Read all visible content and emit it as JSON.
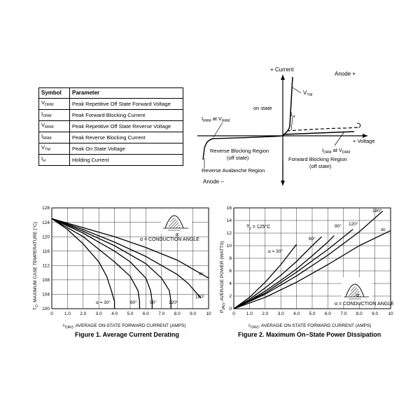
{
  "table": {
    "headers": [
      "Symbol",
      "Parameter"
    ],
    "rows": [
      {
        "sym": "V",
        "sub": "DRM",
        "param": "Peak Repetitive Off State Forward Voltage"
      },
      {
        "sym": "I",
        "sub": "DRM",
        "param": "Peak Forward Blocking Current"
      },
      {
        "sym": "V",
        "sub": "RRM",
        "param": "Peak Repetitive Off State Reverse Voltage"
      },
      {
        "sym": "I",
        "sub": "RRM",
        "param": "Peak Reverse Blocking Current"
      },
      {
        "sym": "V",
        "sub": "TM",
        "param": "Peak On State Voltage"
      },
      {
        "sym": "I",
        "sub": "H",
        "param": "Holding Current"
      }
    ]
  },
  "vi_diagram": {
    "plus_current": "+ Current",
    "anode_plus": "Anode +",
    "vtm_main": "V",
    "vtm_sub": "TM",
    "on_state": "on state",
    "ih_main": "I",
    "ih_sub": "H",
    "irrm_main": "I",
    "irrm_sub": "RRM",
    "irrm_at": " at V",
    "irrm_at_sub": "RRM",
    "plus_voltage": "+ Voltage",
    "idrm_main": "I",
    "idrm_sub": "DRM",
    "idrm_at": " at V",
    "idrm_at_sub": "DRM",
    "rev_block_1": "Reverse Blocking Region",
    "rev_block_2": "(off state)",
    "fwd_block_1": "Forward Blocking Region",
    "fwd_block_2": "(off state)",
    "rev_aval": "Reverse Avalanche Region",
    "anode_minus": "Anode –"
  },
  "figure1": {
    "caption": "Figure 1. Average Current Derating",
    "ylabel_main": "T",
    "ylabel_sub": "C",
    "ylabel_rest": ", MAXIMUM CASE TEMPERATURE (°C)",
    "xlabel_main": "I",
    "xlabel_sub": "T(AV)",
    "xlabel_rest": ", AVERAGE ON-STATE FORWARD CURRENT (AMPS)",
    "conduction_label": "α = CONDUCTION ANGLE",
    "alpha_label": "α",
    "curve_labels": [
      "α = 30°",
      "60°",
      "90°",
      "120°",
      "180°",
      "dc"
    ],
    "chart_data": {
      "type": "line",
      "xlim": [
        0,
        10
      ],
      "ylim": [
        100,
        128
      ],
      "xticks": [
        "0",
        "1.0",
        "2.0",
        "3.0",
        "4.0",
        "5.0",
        "6.0",
        "7.0",
        "8.0",
        "9.0",
        "10"
      ],
      "yticks": [
        "100",
        "104",
        "108",
        "112",
        "116",
        "120",
        "124",
        "128"
      ],
      "grid": true,
      "series": [
        {
          "name": "α = 30°",
          "x": [
            0,
            1,
            2,
            3,
            3.5,
            3.8,
            4.0,
            4.0
          ],
          "y": [
            125,
            122,
            118,
            113,
            109,
            105,
            102,
            100
          ]
        },
        {
          "name": "60°",
          "x": [
            0,
            1,
            2,
            3,
            4,
            5,
            5.5,
            5.6,
            5.6
          ],
          "y": [
            125,
            122.5,
            120,
            116.5,
            113,
            109,
            105,
            102,
            100
          ]
        },
        {
          "name": "90°",
          "x": [
            0,
            1,
            2,
            3,
            4,
            5,
            6,
            6.3,
            6.4,
            6.4
          ],
          "y": [
            125,
            123,
            121,
            118.5,
            116,
            113,
            108.5,
            105,
            102,
            100
          ]
        },
        {
          "name": "120°",
          "x": [
            0,
            2,
            4,
            6,
            7,
            7.5,
            7.6,
            7.6
          ],
          "y": [
            125,
            121.5,
            117.5,
            112.5,
            108.5,
            105,
            102,
            100
          ]
        },
        {
          "name": "180°",
          "x": [
            0,
            2,
            4,
            6,
            8,
            8.7,
            9.2,
            9.5
          ],
          "y": [
            125,
            122,
            118.5,
            114.5,
            109.5,
            107,
            104.5,
            103
          ]
        },
        {
          "name": "dc",
          "x": [
            0,
            2,
            4,
            6,
            8,
            9,
            10
          ],
          "y": [
            125,
            122.5,
            120,
            117,
            113.5,
            111,
            108.5
          ]
        }
      ]
    }
  },
  "figure2": {
    "caption": "Figure 2. Maximum On−State Power Dissipation",
    "ylabel_main": "P",
    "ylabel_sub": "(AV)",
    "ylabel_rest": ", AVERAGE POWER (WATTS)",
    "xlabel_main": "I",
    "xlabel_sub": "T(AV)",
    "xlabel_rest": ", AVERAGE ON-STATE FORWARD CURRENT (AMPS)",
    "tj_main": "T",
    "tj_sub": "J",
    "tj_rest": " = 125°C",
    "conduction_label": "α = CONDUCTION ANGLE",
    "alpha_label": "α",
    "curve_labels": [
      "α = 30°",
      "60°",
      "90°",
      "120°",
      "180°",
      "dc"
    ],
    "chart_data": {
      "type": "line",
      "xlim": [
        0,
        10
      ],
      "ylim": [
        0,
        16
      ],
      "xticks": [
        "0",
        "1.0",
        "2.0",
        "3.0",
        "4.0",
        "5.0",
        "6.0",
        "7.0",
        "8.0",
        "9.0",
        "10"
      ],
      "yticks": [
        "0",
        "2",
        "4",
        "6",
        "8",
        "10",
        "12",
        "14",
        "16"
      ],
      "grid": true,
      "series": [
        {
          "name": "α = 30°",
          "x": [
            0,
            1,
            2,
            3,
            3.5,
            4.0
          ],
          "y": [
            0,
            1.8,
            4.2,
            7,
            8.6,
            10.2
          ]
        },
        {
          "name": "60°",
          "x": [
            0,
            1,
            2,
            3,
            4,
            5,
            5.6
          ],
          "y": [
            0,
            1.5,
            3.3,
            5.3,
            7.5,
            10,
            11.4
          ]
        },
        {
          "name": "90°",
          "x": [
            0,
            1,
            2,
            3,
            4,
            5,
            6,
            6.4
          ],
          "y": [
            0,
            1.3,
            2.8,
            4.5,
            6.3,
            8.4,
            10.6,
            11.6
          ]
        },
        {
          "name": "120°",
          "x": [
            0,
            2,
            4,
            6,
            7.6
          ],
          "y": [
            0,
            2.5,
            5.8,
            9.4,
            12.6
          ]
        },
        {
          "name": "180°",
          "x": [
            0,
            2,
            4,
            6,
            8,
            9.5
          ],
          "y": [
            0,
            2.3,
            5.2,
            8.5,
            12.2,
            15.5
          ]
        },
        {
          "name": "dc",
          "x": [
            0,
            2,
            4,
            6,
            8,
            10
          ],
          "y": [
            0,
            1.8,
            4.2,
            7,
            10,
            12.4
          ]
        }
      ]
    }
  }
}
